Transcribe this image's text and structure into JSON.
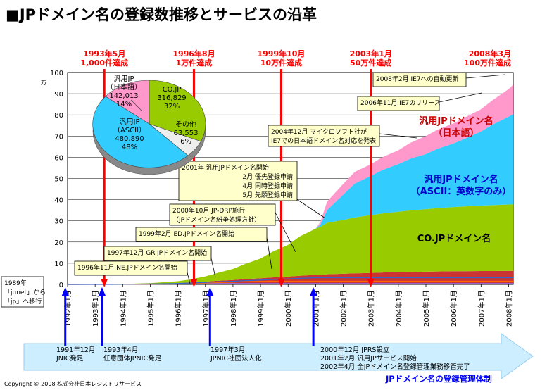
{
  "title": "■JPドメイン名の登録数推移とサービスの沿革",
  "colors": {
    "co": "#99CC00",
    "ascii": "#33CCFF",
    "jp_jp": "#FF99CC",
    "red": "#CC0000",
    "blue": "#0000FF",
    "milestone": "#FF0000",
    "timeline_arrow": "#CCEEFF",
    "note_bg": "#FFFFCC"
  },
  "chart_data": [
    {
      "type": "area",
      "stacked": true,
      "unit": "万",
      "ylim": [
        0,
        100
      ],
      "yticks": [
        0,
        10,
        20,
        30,
        40,
        50,
        60,
        70,
        80,
        90,
        100
      ],
      "xlim": [
        "1992-01",
        "2008-03"
      ],
      "xticks": [
        "1992年1月",
        "1993年1月",
        "1994年1月",
        "1995年1月",
        "1996年1月",
        "1997年1月",
        "1998年1月",
        "1999年1月",
        "2000年1月",
        "2001年1月",
        "2002年1月",
        "2003年1月",
        "2004年1月",
        "2005年1月",
        "2006年1月",
        "2007年1月",
        "2008年1月"
      ],
      "x": [
        "1992-01",
        "1993-01",
        "1994-01",
        "1995-01",
        "1996-01",
        "1996-06",
        "1997-01",
        "1997-06",
        "1998-01",
        "1998-06",
        "1999-01",
        "1999-06",
        "2000-01",
        "2000-06",
        "2001-01",
        "2001-03",
        "2001-06",
        "2002-01",
        "2002-06",
        "2003-01",
        "2003-06",
        "2004-01",
        "2004-06",
        "2005-01",
        "2005-06",
        "2006-01",
        "2006-06",
        "2007-01",
        "2007-06",
        "2008-01",
        "2008-03"
      ],
      "series": [
        {
          "name": "その他",
          "color": "#CC3333",
          "values": [
            0,
            0.05,
            0.1,
            0.3,
            0.6,
            0.9,
            1.3,
            1.7,
            2.1,
            2.5,
            2.9,
            3.3,
            3.7,
            4.1,
            4.5,
            4.6,
            4.8,
            5,
            5.2,
            5.4,
            5.6,
            5.8,
            5.9,
            6,
            6.1,
            6.2,
            6.2,
            6.3,
            6.3,
            6.4,
            6.4
          ]
        },
        {
          "name": "CO.JPドメイン名",
          "color": "#99CC00",
          "values": [
            0,
            0,
            0.1,
            0.3,
            0.9,
            1.4,
            2.5,
            3.6,
            5.2,
            7,
            9.3,
            12,
            15,
            18.5,
            21.8,
            22.5,
            24.3,
            25.4,
            26.4,
            27.3,
            27.9,
            28.5,
            29,
            29.5,
            29.9,
            30.3,
            30.6,
            30.9,
            31.1,
            31.3,
            31.4
          ]
        },
        {
          "name": "汎用JPドメイン名（ASCII：英数字のみ）",
          "color": "#33CCFF",
          "values": [
            0,
            0,
            0,
            0,
            0,
            0,
            0,
            0,
            0,
            0,
            0,
            0,
            0,
            0,
            0,
            1,
            6,
            12,
            16,
            18.5,
            20.5,
            22.5,
            24.3,
            26,
            28,
            30,
            32,
            35,
            38,
            41.5,
            42.5
          ]
        },
        {
          "name": "汎用JPドメイン名（日本語）",
          "color": "#FF99CC",
          "values": [
            0,
            0,
            0,
            0,
            0,
            0,
            0,
            0,
            0,
            0,
            0,
            0,
            0,
            0,
            0,
            1.3,
            4,
            5,
            5.5,
            5.5,
            6,
            6.5,
            7.5,
            8.5,
            9,
            9.5,
            10,
            10.5,
            11.5,
            13,
            14
          ]
        }
      ],
      "milestones": [
        {
          "x": "1993-05",
          "line1": "1993年5月",
          "line2": "1,000件達成"
        },
        {
          "x": "1996-08",
          "line1": "1996年8月",
          "line2": "1万件達成"
        },
        {
          "x": "1999-10",
          "line1": "1999年10月",
          "line2": "10万件達成"
        },
        {
          "x": "2003-01",
          "line1": "2003年1月",
          "line2": "50万件達成"
        },
        {
          "x": "2008-03",
          "line1": "2008年3月",
          "line2": "100万件達成"
        }
      ],
      "annotations": [
        {
          "lines": [
            "1996年11月 NE.JPドメイン名開始"
          ]
        },
        {
          "lines": [
            "1997年12月 GR.JPドメイン名開始"
          ]
        },
        {
          "lines": [
            "1999年2月 ED.JPドメイン名開始"
          ]
        },
        {
          "lines": [
            "2000年10月 JP-DRP施行",
            "（JPドメイン名紛争処理方針）"
          ]
        },
        {
          "lines": [
            "2001年 汎用JPドメイン名開始",
            "2月 優先登録申請",
            "4月 同時登録申請",
            "5月 先願登録申請"
          ]
        },
        {
          "lines": [
            "2004年12月 マイクロソフト社が",
            "IE7での日本語ドメイン名対応を発表"
          ]
        },
        {
          "lines": [
            "2006年11月 IE7のリリース"
          ]
        },
        {
          "lines": [
            "2008年2月 IE7への自動更新"
          ]
        },
        {
          "lines": [
            "1989年",
            "「junet」から",
            "「jp」へ移行"
          ]
        }
      ],
      "series_labels": {
        "jp_jp": [
          "汎用JPドメイン名",
          "（日本語）"
        ],
        "ascii": [
          "汎用JPドメイン名",
          "（ASCII：英数字のみ）"
        ],
        "co": [
          "CO.JPドメイン名"
        ]
      }
    },
    {
      "type": "pie",
      "slices": [
        {
          "name": "CO.JP",
          "value": 316829,
          "value_label": "316,829",
          "pct": "32%",
          "color": "#99CC00"
        },
        {
          "name": "その他",
          "value": 63553,
          "value_label": "63,553",
          "pct": "6%",
          "color": "#EEEEEE"
        },
        {
          "name": "汎用JP（ASCII）",
          "name1": "汎用JP",
          "name2": "（ASCII）",
          "value": 480890,
          "value_label": "480,890",
          "pct": "48%",
          "color": "#33CCFF"
        },
        {
          "name": "汎用JP（日本語）",
          "name1": "汎用JP",
          "name2": "（日本語）",
          "value": 142013,
          "value_label": "142,013",
          "pct": "14%",
          "color": "#FF99CC"
        }
      ]
    }
  ],
  "timeline": {
    "footer_label": "JPドメイン名の登録管理体制",
    "events": [
      {
        "lines": [
          "1991年12月",
          "JNIC発足"
        ]
      },
      {
        "lines": [
          "1993年4月",
          "任意団体JPNIC発足"
        ]
      },
      {
        "lines": [
          "1997年3月",
          "JPNIC社団法人化"
        ]
      },
      {
        "lines": [
          "2000年12月 JPRS設立",
          "2001年2月 汎用JPサービス開始",
          "2002年4月 全JPドメイン名登録管理業務移管完了"
        ]
      }
    ]
  },
  "copyright": "Copyright © 2008 株式会社日本レジストリサービス"
}
